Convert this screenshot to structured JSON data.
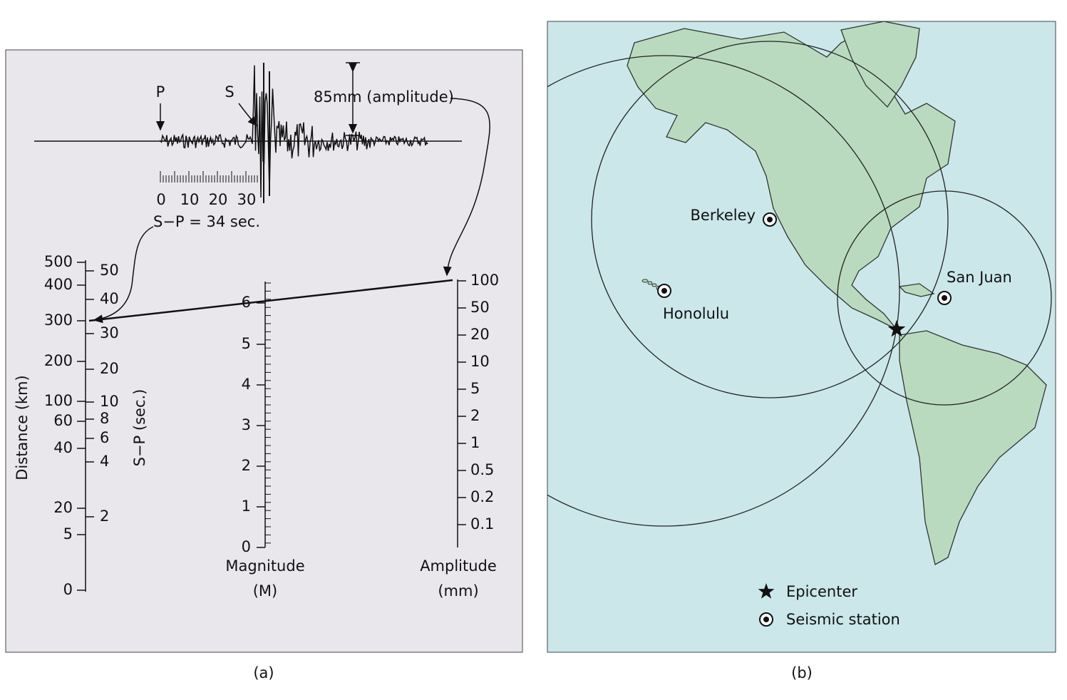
{
  "panel_a": {
    "seismogram": {
      "p_label": "P",
      "s_label": "S",
      "amplitude_label": "85mm (amplitude)",
      "time_scale": [
        0,
        10,
        20,
        30
      ],
      "s_minus_p": "S−P = 34 sec."
    },
    "distance_scale": {
      "title": "Distance (km)",
      "labels": [
        500,
        400,
        300,
        200,
        100,
        60,
        40,
        20,
        5,
        0
      ]
    },
    "sp_scale": {
      "title": "S−P (sec.)",
      "labels": [
        50,
        40,
        30,
        20,
        10,
        8,
        6,
        4,
        2
      ]
    },
    "magnitude_scale": {
      "title": "Magnitude",
      "unit": "(M)",
      "labels": [
        6,
        5,
        4,
        3,
        2,
        1,
        0
      ]
    },
    "amplitude_scale": {
      "title": "Amplitude",
      "unit": "(mm)",
      "labels": [
        100,
        50,
        20,
        10,
        5,
        2,
        1,
        0.5,
        0.2,
        0.1
      ]
    },
    "caption": "(a)"
  },
  "panel_b": {
    "stations": [
      {
        "label": "Berkeley"
      },
      {
        "label": "Honolulu"
      },
      {
        "label": "San Juan"
      }
    ],
    "legend": {
      "epicenter": "Epicenter",
      "station": "Seismic station"
    },
    "caption": "(b)"
  }
}
